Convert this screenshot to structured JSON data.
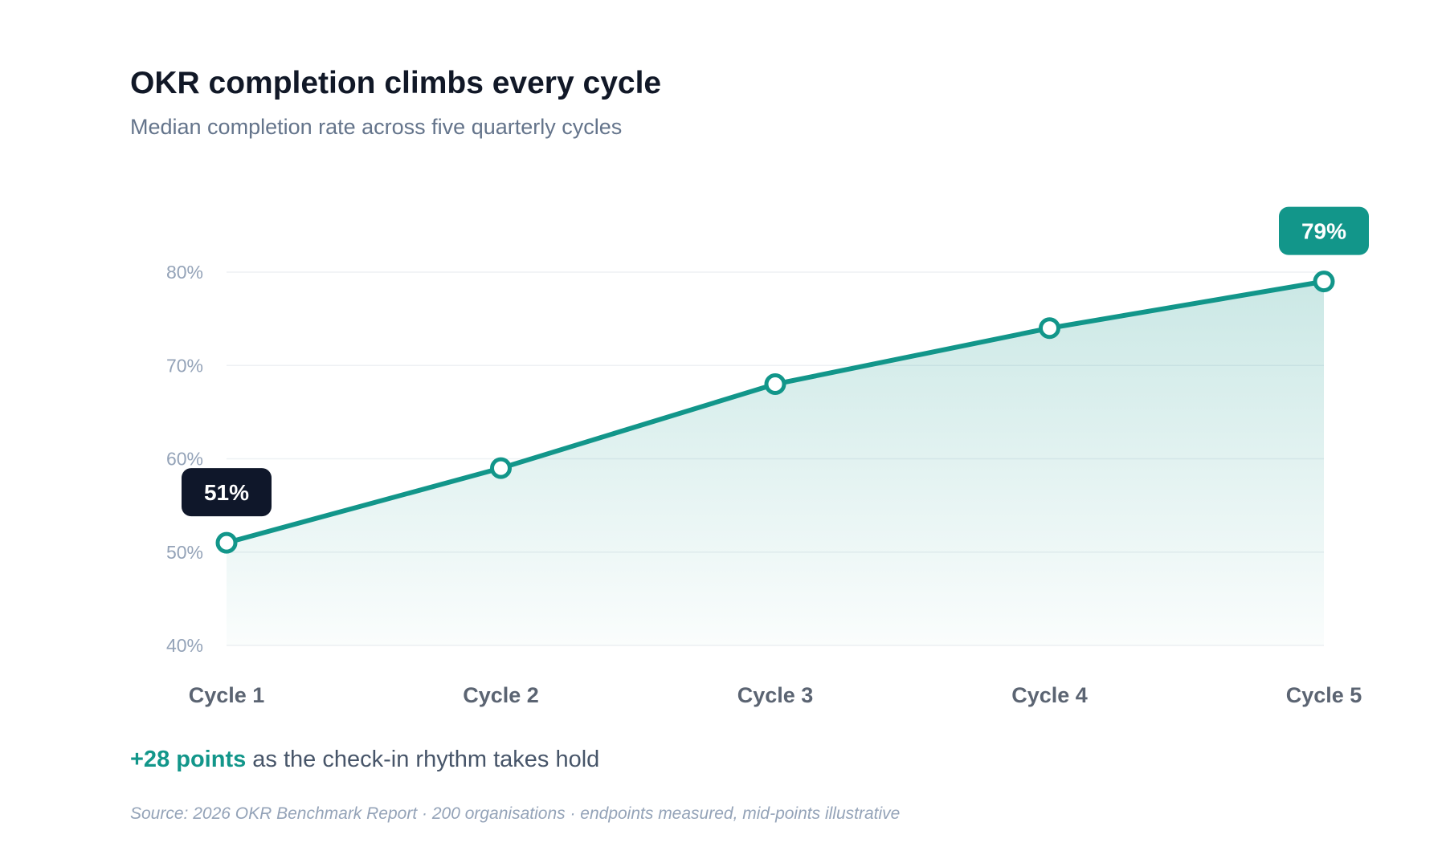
{
  "chart_data": {
    "type": "area",
    "title": "OKR completion climbs every cycle",
    "subtitle": "Median completion rate across five quarterly cycles",
    "categories": [
      "Cycle 1",
      "Cycle 2",
      "Cycle 3",
      "Cycle 4",
      "Cycle 5"
    ],
    "series": [
      {
        "values": [
          51,
          59,
          68,
          74,
          79
        ]
      }
    ],
    "ylim": [
      40,
      80
    ],
    "yticks": [
      40,
      50,
      60,
      70,
      80
    ],
    "ytick_labels": [
      "40%",
      "50%",
      "60%",
      "70%",
      "80%"
    ],
    "xlabel": "",
    "ylabel": "",
    "grid": true,
    "legend": "none",
    "annotations": [
      {
        "category": "Cycle 1",
        "value": 51,
        "text": "51%",
        "color": "#0f172a"
      },
      {
        "category": "Cycle 5",
        "value": 79,
        "text": "79%",
        "color": "#12968a"
      }
    ],
    "colors": {
      "line": "#12968a",
      "fill": "#12968a",
      "grid": "#eef1f4",
      "tick": "#94a3b8",
      "category": "#5b6472"
    }
  },
  "callout": {
    "highlight": "+28 points",
    "text": " as the check-in rhythm takes hold"
  },
  "source": "Source: 2026 OKR Benchmark Report · 200 organisations · endpoints measured, mid-points illustrative"
}
